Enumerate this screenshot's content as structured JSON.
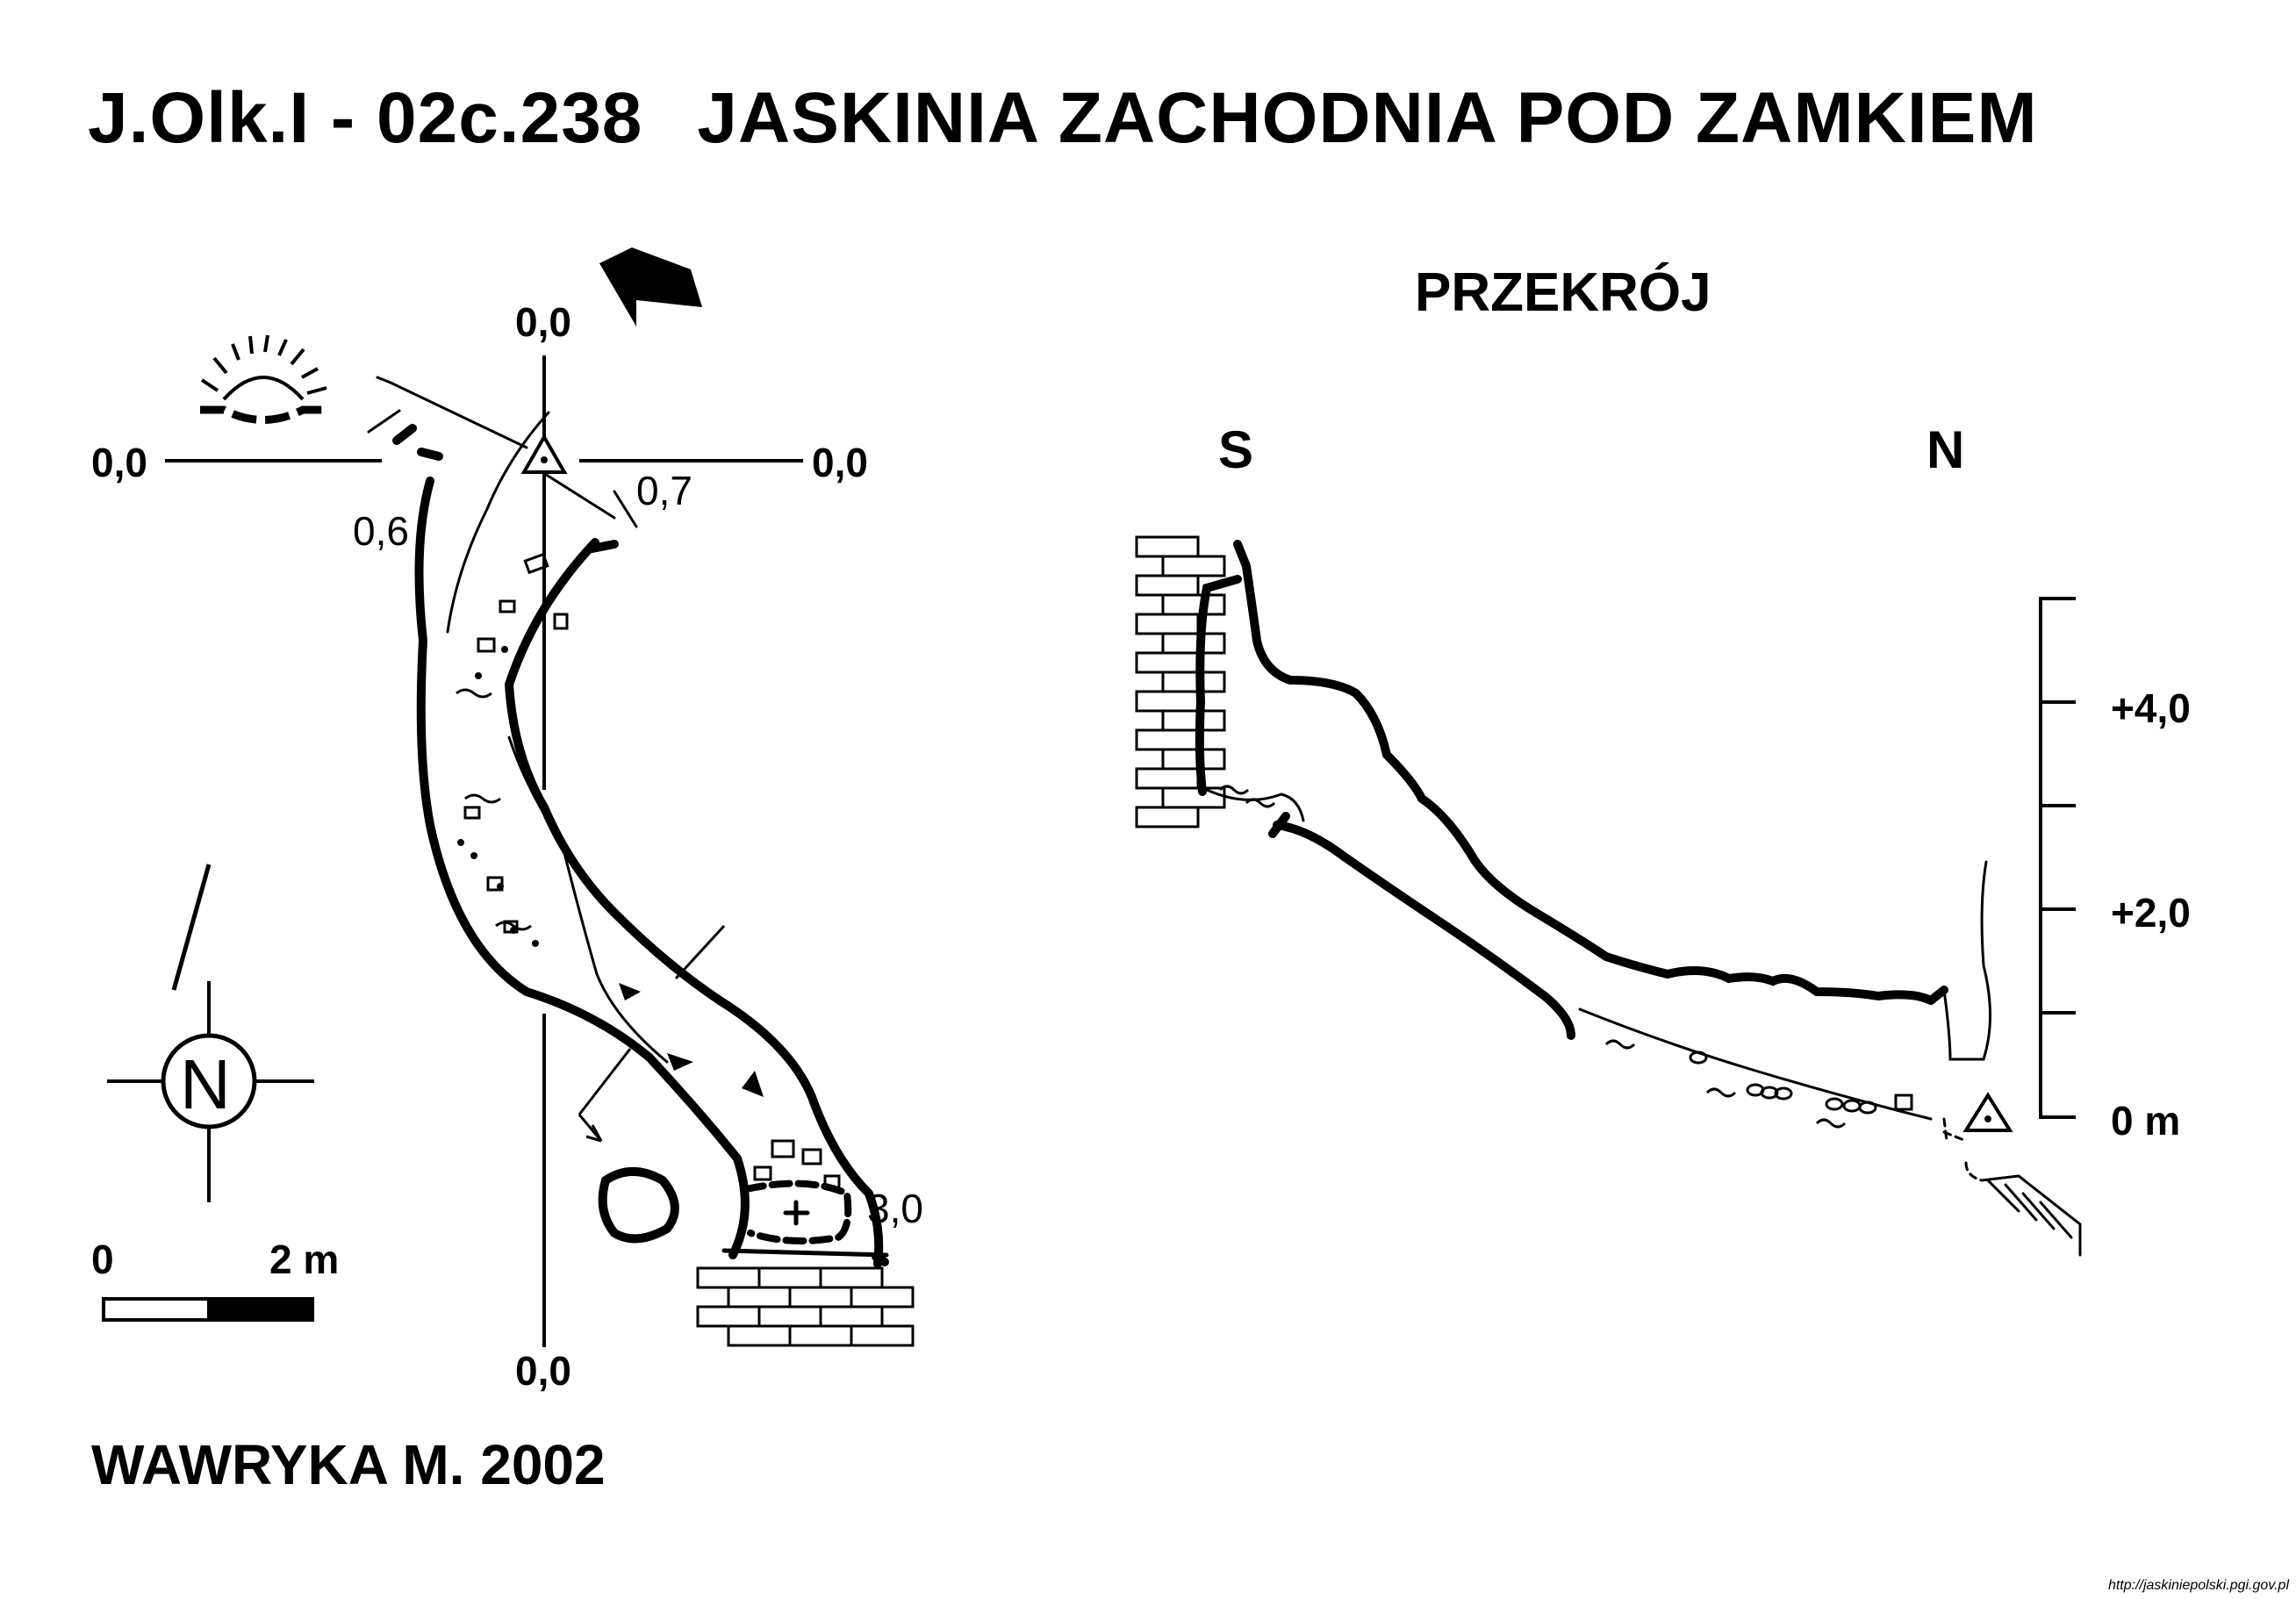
{
  "title": {
    "code": "J.Olk.I - 02c.238",
    "name": "JASKINIA ZACHODNIA POD ZAMKIEM"
  },
  "section": {
    "title": "PRZEKRÓJ",
    "south": "S",
    "north": "N"
  },
  "plan": {
    "grid_labels": {
      "top": "0,0",
      "left": "0,0",
      "right": "0,0",
      "bottom": "0,0"
    },
    "heights": {
      "entrance_left": "0,6",
      "entrance_right": "0,7",
      "end": "3,0"
    },
    "north_symbol": "N",
    "scale": {
      "start": "0",
      "end": "2 m"
    }
  },
  "elevation_scale": {
    "ticks": [
      "+4,0",
      "+2,0",
      "0 m"
    ]
  },
  "author": "WAWRYKA M. 2002",
  "source": "http://jaskiniepolski.pgi.gov.pl",
  "colors": {
    "ink": "#000000",
    "paper": "#ffffff"
  }
}
